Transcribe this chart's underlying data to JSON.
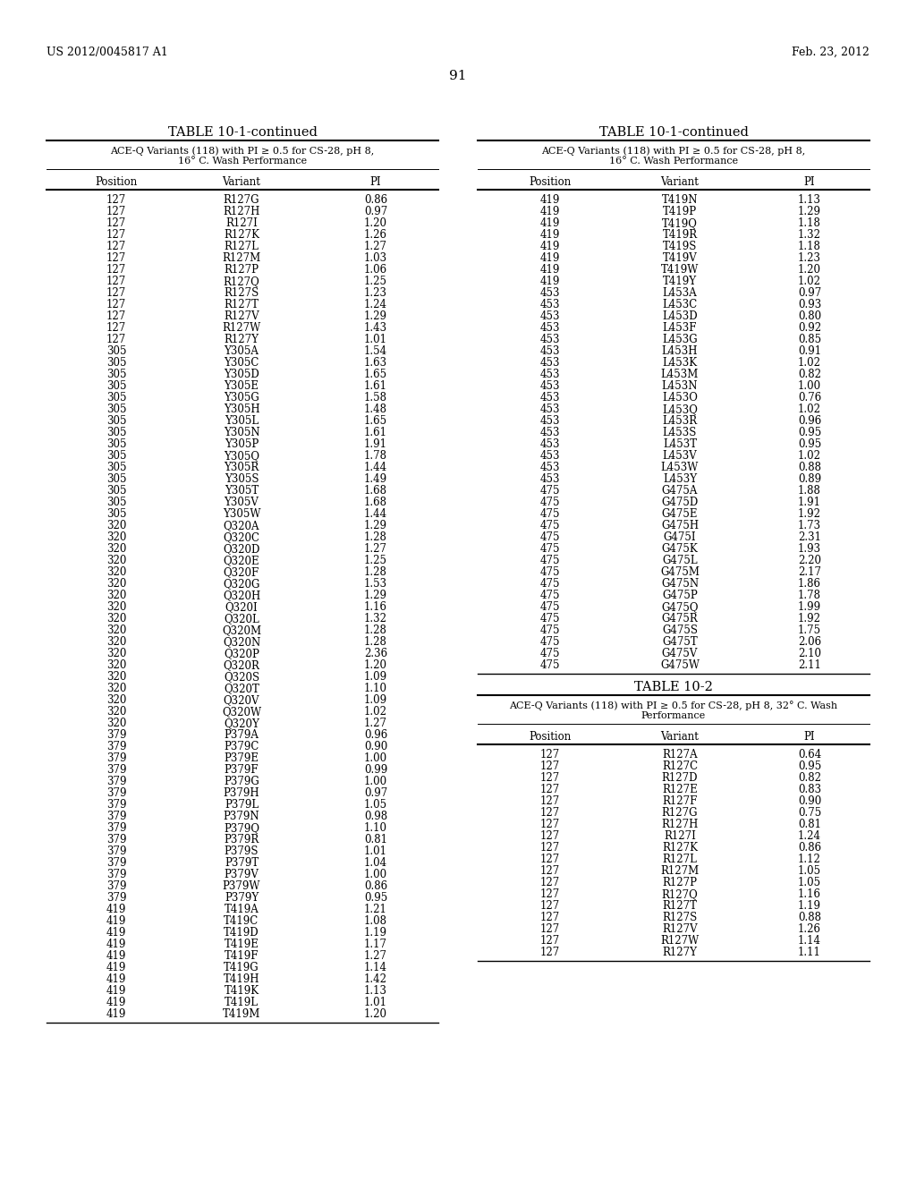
{
  "header_left": "US 2012/0045817 A1",
  "header_right": "Feb. 23, 2012",
  "page_number": "91",
  "table1_title": "TABLE 10-1-continued",
  "table1_subtitle": "ACE-Q Variants (118) with PI ≥ 0.5 for CS-28, pH 8,\n16° C. Wash Performance",
  "table1_cols": [
    "Position",
    "Variant",
    "PI"
  ],
  "table1_data": [
    [
      "127",
      "R127G",
      "0.86"
    ],
    [
      "127",
      "R127H",
      "0.97"
    ],
    [
      "127",
      "R127I",
      "1.20"
    ],
    [
      "127",
      "R127K",
      "1.26"
    ],
    [
      "127",
      "R127L",
      "1.27"
    ],
    [
      "127",
      "R127M",
      "1.03"
    ],
    [
      "127",
      "R127P",
      "1.06"
    ],
    [
      "127",
      "R127Q",
      "1.25"
    ],
    [
      "127",
      "R127S",
      "1.23"
    ],
    [
      "127",
      "R127T",
      "1.24"
    ],
    [
      "127",
      "R127V",
      "1.29"
    ],
    [
      "127",
      "R127W",
      "1.43"
    ],
    [
      "127",
      "R127Y",
      "1.01"
    ],
    [
      "305",
      "Y305A",
      "1.54"
    ],
    [
      "305",
      "Y305C",
      "1.63"
    ],
    [
      "305",
      "Y305D",
      "1.65"
    ],
    [
      "305",
      "Y305E",
      "1.61"
    ],
    [
      "305",
      "Y305G",
      "1.58"
    ],
    [
      "305",
      "Y305H",
      "1.48"
    ],
    [
      "305",
      "Y305L",
      "1.65"
    ],
    [
      "305",
      "Y305N",
      "1.61"
    ],
    [
      "305",
      "Y305P",
      "1.91"
    ],
    [
      "305",
      "Y305Q",
      "1.78"
    ],
    [
      "305",
      "Y305R",
      "1.44"
    ],
    [
      "305",
      "Y305S",
      "1.49"
    ],
    [
      "305",
      "Y305T",
      "1.68"
    ],
    [
      "305",
      "Y305V",
      "1.68"
    ],
    [
      "305",
      "Y305W",
      "1.44"
    ],
    [
      "320",
      "Q320A",
      "1.29"
    ],
    [
      "320",
      "Q320C",
      "1.28"
    ],
    [
      "320",
      "Q320D",
      "1.27"
    ],
    [
      "320",
      "Q320E",
      "1.25"
    ],
    [
      "320",
      "Q320F",
      "1.28"
    ],
    [
      "320",
      "Q320G",
      "1.53"
    ],
    [
      "320",
      "Q320H",
      "1.29"
    ],
    [
      "320",
      "Q320I",
      "1.16"
    ],
    [
      "320",
      "Q320L",
      "1.32"
    ],
    [
      "320",
      "Q320M",
      "1.28"
    ],
    [
      "320",
      "Q320N",
      "1.28"
    ],
    [
      "320",
      "Q320P",
      "2.36"
    ],
    [
      "320",
      "Q320R",
      "1.20"
    ],
    [
      "320",
      "Q320S",
      "1.09"
    ],
    [
      "320",
      "Q320T",
      "1.10"
    ],
    [
      "320",
      "Q320V",
      "1.09"
    ],
    [
      "320",
      "Q320W",
      "1.02"
    ],
    [
      "320",
      "Q320Y",
      "1.27"
    ],
    [
      "379",
      "P379A",
      "0.96"
    ],
    [
      "379",
      "P379C",
      "0.90"
    ],
    [
      "379",
      "P379E",
      "1.00"
    ],
    [
      "379",
      "P379F",
      "0.99"
    ],
    [
      "379",
      "P379G",
      "1.00"
    ],
    [
      "379",
      "P379H",
      "0.97"
    ],
    [
      "379",
      "P379L",
      "1.05"
    ],
    [
      "379",
      "P379N",
      "0.98"
    ],
    [
      "379",
      "P379Q",
      "1.10"
    ],
    [
      "379",
      "P379R",
      "0.81"
    ],
    [
      "379",
      "P379S",
      "1.01"
    ],
    [
      "379",
      "P379T",
      "1.04"
    ],
    [
      "379",
      "P379V",
      "1.00"
    ],
    [
      "379",
      "P379W",
      "0.86"
    ],
    [
      "379",
      "P379Y",
      "0.95"
    ],
    [
      "419",
      "T419A",
      "1.21"
    ],
    [
      "419",
      "T419C",
      "1.08"
    ],
    [
      "419",
      "T419D",
      "1.19"
    ],
    [
      "419",
      "T419E",
      "1.17"
    ],
    [
      "419",
      "T419F",
      "1.27"
    ],
    [
      "419",
      "T419G",
      "1.14"
    ],
    [
      "419",
      "T419H",
      "1.42"
    ],
    [
      "419",
      "T419K",
      "1.13"
    ],
    [
      "419",
      "T419L",
      "1.01"
    ],
    [
      "419",
      "T419M",
      "1.20"
    ]
  ],
  "table2_title": "TABLE 10-1-continued",
  "table2_subtitle": "ACE-Q Variants (118) with PI ≥ 0.5 for CS-28, pH 8,\n16° C. Wash Performance",
  "table2_cols": [
    "Position",
    "Variant",
    "PI"
  ],
  "table2_data": [
    [
      "419",
      "T419N",
      "1.13"
    ],
    [
      "419",
      "T419P",
      "1.29"
    ],
    [
      "419",
      "T419Q",
      "1.18"
    ],
    [
      "419",
      "T419R",
      "1.32"
    ],
    [
      "419",
      "T419S",
      "1.18"
    ],
    [
      "419",
      "T419V",
      "1.23"
    ],
    [
      "419",
      "T419W",
      "1.20"
    ],
    [
      "419",
      "T419Y",
      "1.02"
    ],
    [
      "453",
      "L453A",
      "0.97"
    ],
    [
      "453",
      "L453C",
      "0.93"
    ],
    [
      "453",
      "L453D",
      "0.80"
    ],
    [
      "453",
      "L453F",
      "0.92"
    ],
    [
      "453",
      "L453G",
      "0.85"
    ],
    [
      "453",
      "L453H",
      "0.91"
    ],
    [
      "453",
      "L453K",
      "1.02"
    ],
    [
      "453",
      "L453M",
      "0.82"
    ],
    [
      "453",
      "L453N",
      "1.00"
    ],
    [
      "453",
      "L453O",
      "0.76"
    ],
    [
      "453",
      "L453Q",
      "1.02"
    ],
    [
      "453",
      "L453R",
      "0.96"
    ],
    [
      "453",
      "L453S",
      "0.95"
    ],
    [
      "453",
      "L453T",
      "0.95"
    ],
    [
      "453",
      "L453V",
      "1.02"
    ],
    [
      "453",
      "L453W",
      "0.88"
    ],
    [
      "453",
      "L453Y",
      "0.89"
    ],
    [
      "475",
      "G475A",
      "1.88"
    ],
    [
      "475",
      "G475D",
      "1.91"
    ],
    [
      "475",
      "G475E",
      "1.92"
    ],
    [
      "475",
      "G475H",
      "1.73"
    ],
    [
      "475",
      "G475I",
      "2.31"
    ],
    [
      "475",
      "G475K",
      "1.93"
    ],
    [
      "475",
      "G475L",
      "2.20"
    ],
    [
      "475",
      "G475M",
      "2.17"
    ],
    [
      "475",
      "G475N",
      "1.86"
    ],
    [
      "475",
      "G475P",
      "1.78"
    ],
    [
      "475",
      "G475Q",
      "1.99"
    ],
    [
      "475",
      "G475R",
      "1.92"
    ],
    [
      "475",
      "G475S",
      "1.75"
    ],
    [
      "475",
      "G475T",
      "2.06"
    ],
    [
      "475",
      "G475V",
      "2.10"
    ],
    [
      "475",
      "G475W",
      "2.11"
    ]
  ],
  "table3_title": "TABLE 10-2",
  "table3_subtitle": "ACE-Q Variants (118) with PI ≥ 0.5 for CS-28, pH 8, 32° C. Wash\nPerformance",
  "table3_cols": [
    "Position",
    "Variant",
    "PI"
  ],
  "table3_data": [
    [
      "127",
      "R127A",
      "0.64"
    ],
    [
      "127",
      "R127C",
      "0.95"
    ],
    [
      "127",
      "R127D",
      "0.82"
    ],
    [
      "127",
      "R127E",
      "0.83"
    ],
    [
      "127",
      "R127F",
      "0.90"
    ],
    [
      "127",
      "R127G",
      "0.75"
    ],
    [
      "127",
      "R127H",
      "0.81"
    ],
    [
      "127",
      "R127I",
      "1.24"
    ],
    [
      "127",
      "R127K",
      "0.86"
    ],
    [
      "127",
      "R127L",
      "1.12"
    ],
    [
      "127",
      "R127M",
      "1.05"
    ],
    [
      "127",
      "R127P",
      "1.05"
    ],
    [
      "127",
      "R127Q",
      "1.16"
    ],
    [
      "127",
      "R127T",
      "1.19"
    ],
    [
      "127",
      "R127S",
      "0.88"
    ],
    [
      "127",
      "R127V",
      "1.26"
    ],
    [
      "127",
      "R127W",
      "1.14"
    ],
    [
      "127",
      "R127Y",
      "1.11"
    ]
  ]
}
